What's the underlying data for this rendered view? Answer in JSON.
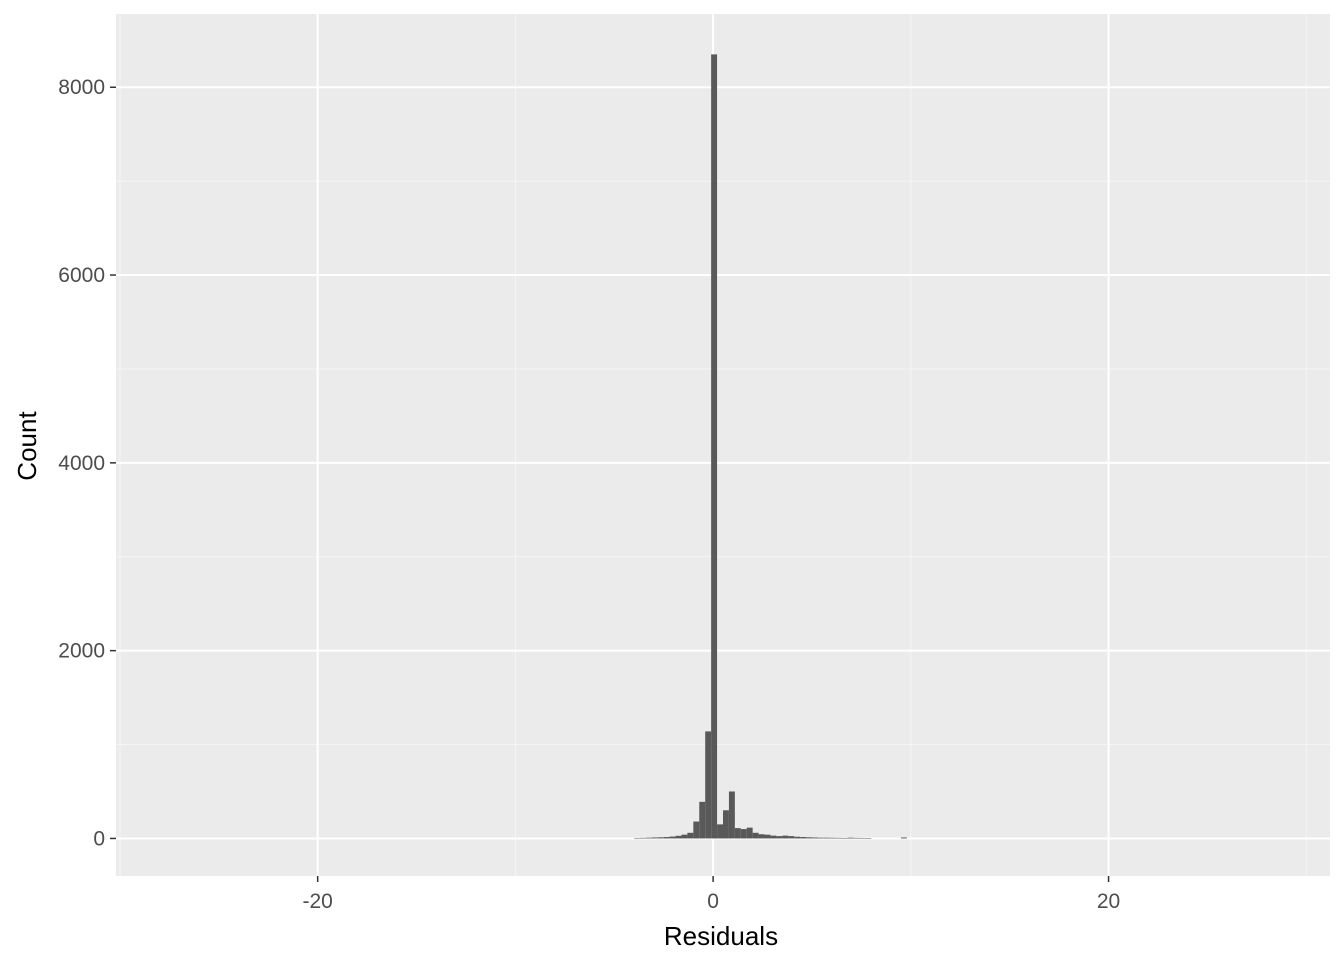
{
  "chart_data": {
    "type": "bar",
    "subtype": "histogram",
    "title": "",
    "xlabel": "Residuals",
    "ylabel": "Count",
    "xlim": [
      -30.2,
      31.2
    ],
    "ylim": [
      -400,
      8780
    ],
    "x_ticks": [
      -20,
      0,
      20
    ],
    "x_tick_labels": [
      "-20",
      "0",
      "20"
    ],
    "x_minor_ticks": [
      -30,
      -10,
      10,
      30
    ],
    "y_ticks": [
      0,
      2000,
      4000,
      6000,
      8000
    ],
    "y_tick_labels": [
      "0",
      "2000",
      "4000",
      "6000",
      "8000"
    ],
    "y_minor_ticks": [
      1000,
      3000,
      5000,
      7000
    ],
    "grid": true,
    "legend": "none",
    "colors": {
      "panel_background": "#ebebeb",
      "grid_major": "#ffffff",
      "grid_minor": "#f5f5f5",
      "bar_fill": "#595959",
      "tick_label": "#4d4d4d",
      "axis_title": "#000000"
    },
    "bin_width": 0.3,
    "bins": [
      {
        "x0": -4.0,
        "x1": -3.7,
        "count": 5
      },
      {
        "x0": -3.7,
        "x1": -3.4,
        "count": 6
      },
      {
        "x0": -3.4,
        "x1": -3.1,
        "count": 8
      },
      {
        "x0": -3.1,
        "x1": -2.8,
        "count": 10
      },
      {
        "x0": -2.8,
        "x1": -2.5,
        "count": 12
      },
      {
        "x0": -2.5,
        "x1": -2.2,
        "count": 15
      },
      {
        "x0": -2.2,
        "x1": -1.9,
        "count": 20
      },
      {
        "x0": -1.9,
        "x1": -1.6,
        "count": 28
      },
      {
        "x0": -1.6,
        "x1": -1.3,
        "count": 40
      },
      {
        "x0": -1.3,
        "x1": -1.0,
        "count": 60
      },
      {
        "x0": -1.0,
        "x1": -0.7,
        "count": 180
      },
      {
        "x0": -0.7,
        "x1": -0.4,
        "count": 390
      },
      {
        "x0": -0.4,
        "x1": -0.1,
        "count": 1140
      },
      {
        "x0": -0.1,
        "x1": 0.2,
        "count": 8350
      },
      {
        "x0": 0.2,
        "x1": 0.5,
        "count": 150
      },
      {
        "x0": 0.5,
        "x1": 0.8,
        "count": 300
      },
      {
        "x0": 0.8,
        "x1": 1.1,
        "count": 500
      },
      {
        "x0": 1.1,
        "x1": 1.4,
        "count": 110
      },
      {
        "x0": 1.4,
        "x1": 1.7,
        "count": 100
      },
      {
        "x0": 1.7,
        "x1": 2.0,
        "count": 115
      },
      {
        "x0": 2.0,
        "x1": 2.3,
        "count": 60
      },
      {
        "x0": 2.3,
        "x1": 2.6,
        "count": 45
      },
      {
        "x0": 2.6,
        "x1": 2.9,
        "count": 40
      },
      {
        "x0": 2.9,
        "x1": 3.2,
        "count": 30
      },
      {
        "x0": 3.2,
        "x1": 3.5,
        "count": 25
      },
      {
        "x0": 3.5,
        "x1": 3.8,
        "count": 30
      },
      {
        "x0": 3.8,
        "x1": 4.1,
        "count": 25
      },
      {
        "x0": 4.1,
        "x1": 4.4,
        "count": 18
      },
      {
        "x0": 4.4,
        "x1": 4.7,
        "count": 15
      },
      {
        "x0": 4.7,
        "x1": 5.0,
        "count": 12
      },
      {
        "x0": 5.0,
        "x1": 5.3,
        "count": 10
      },
      {
        "x0": 5.3,
        "x1": 5.6,
        "count": 8
      },
      {
        "x0": 5.6,
        "x1": 5.9,
        "count": 8
      },
      {
        "x0": 5.9,
        "x1": 6.2,
        "count": 7
      },
      {
        "x0": 6.2,
        "x1": 6.5,
        "count": 6
      },
      {
        "x0": 6.5,
        "x1": 6.8,
        "count": 5
      },
      {
        "x0": 6.8,
        "x1": 7.1,
        "count": 8
      },
      {
        "x0": 7.1,
        "x1": 7.4,
        "count": 6
      },
      {
        "x0": 7.4,
        "x1": 7.7,
        "count": 5
      },
      {
        "x0": 7.7,
        "x1": 8.0,
        "count": 4
      },
      {
        "x0": 9.5,
        "x1": 9.8,
        "count": 10
      }
    ]
  }
}
